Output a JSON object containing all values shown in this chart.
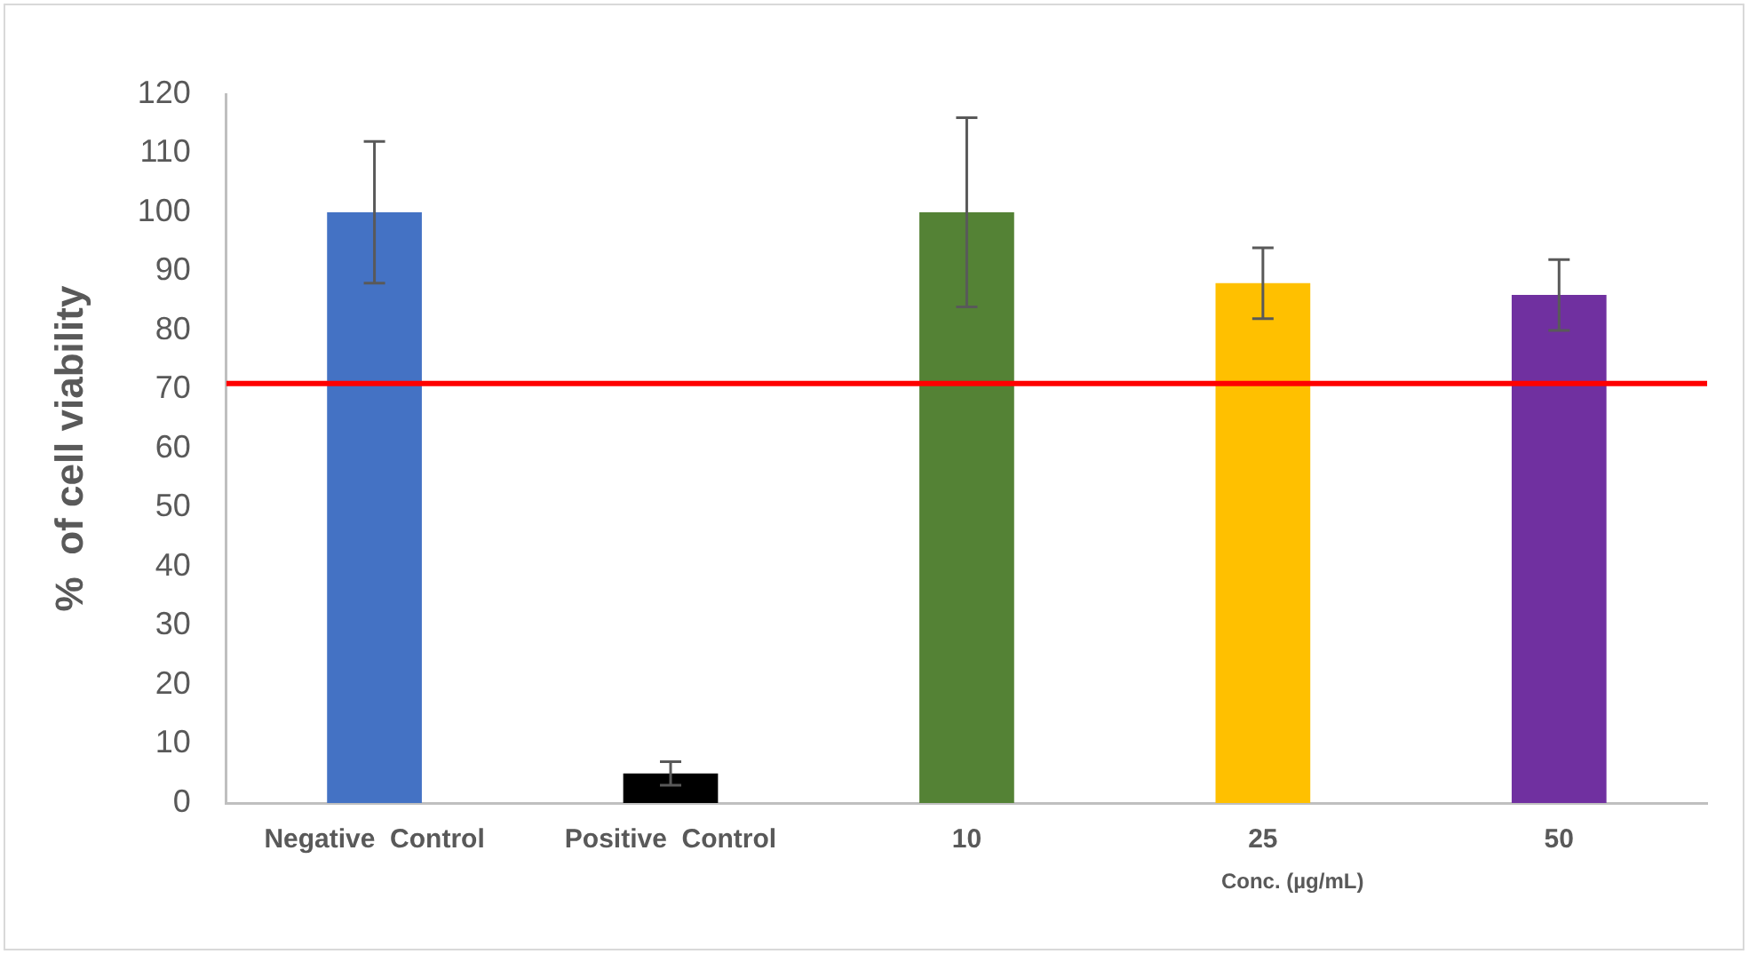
{
  "chart_data": {
    "type": "bar",
    "ylabel": "%  of cell viability",
    "xlabel": "Conc. (µg/mL)",
    "categories": [
      "Negative  Control",
      "Positive  Control",
      "10",
      "25",
      "50"
    ],
    "values": [
      100,
      5,
      100,
      88,
      86
    ],
    "colors": [
      "#4472c4",
      "#000000",
      "#548235",
      "#ffc000",
      "#7030a0"
    ],
    "errors": [
      12,
      2,
      16,
      6,
      6
    ],
    "ylim": [
      0,
      120
    ],
    "yticks": [
      0,
      10,
      20,
      30,
      40,
      50,
      60,
      70,
      80,
      90,
      100,
      110,
      120
    ],
    "grid": false,
    "legend": false,
    "ref_lines": [
      {
        "axis": "y",
        "value": 71,
        "color": "#ff0000"
      }
    ]
  }
}
